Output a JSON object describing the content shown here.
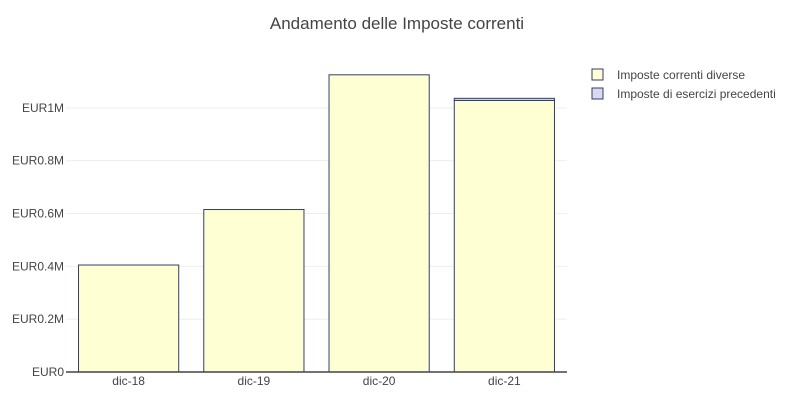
{
  "chart_data": {
    "type": "bar",
    "stacked": true,
    "title": "Andamento delle Imposte correnti",
    "xlabel": "",
    "ylabel": "",
    "categories": [
      "dic-18",
      "dic-19",
      "dic-20",
      "dic-21"
    ],
    "series": [
      {
        "name": "Imposte correnti diverse",
        "color": "#ffffd4",
        "values": [
          405000,
          615000,
          1125000,
          1028000
        ]
      },
      {
        "name": "Imposte di esercizi precedenti",
        "color": "#d9d9ef",
        "values": [
          0,
          0,
          0,
          8000
        ]
      }
    ],
    "stroke_color": "#2f3e6e",
    "ylim": [
      0,
      1200000
    ],
    "yticks": [
      {
        "value": 0,
        "label": "EUR0"
      },
      {
        "value": 200000,
        "label": "EUR0.2M"
      },
      {
        "value": 400000,
        "label": "EUR0.4M"
      },
      {
        "value": 600000,
        "label": "EUR0.6M"
      },
      {
        "value": 800000,
        "label": "EUR0.8M"
      },
      {
        "value": 1000000,
        "label": "EUR1M"
      }
    ],
    "grid": true,
    "legend_position": "top-right"
  }
}
